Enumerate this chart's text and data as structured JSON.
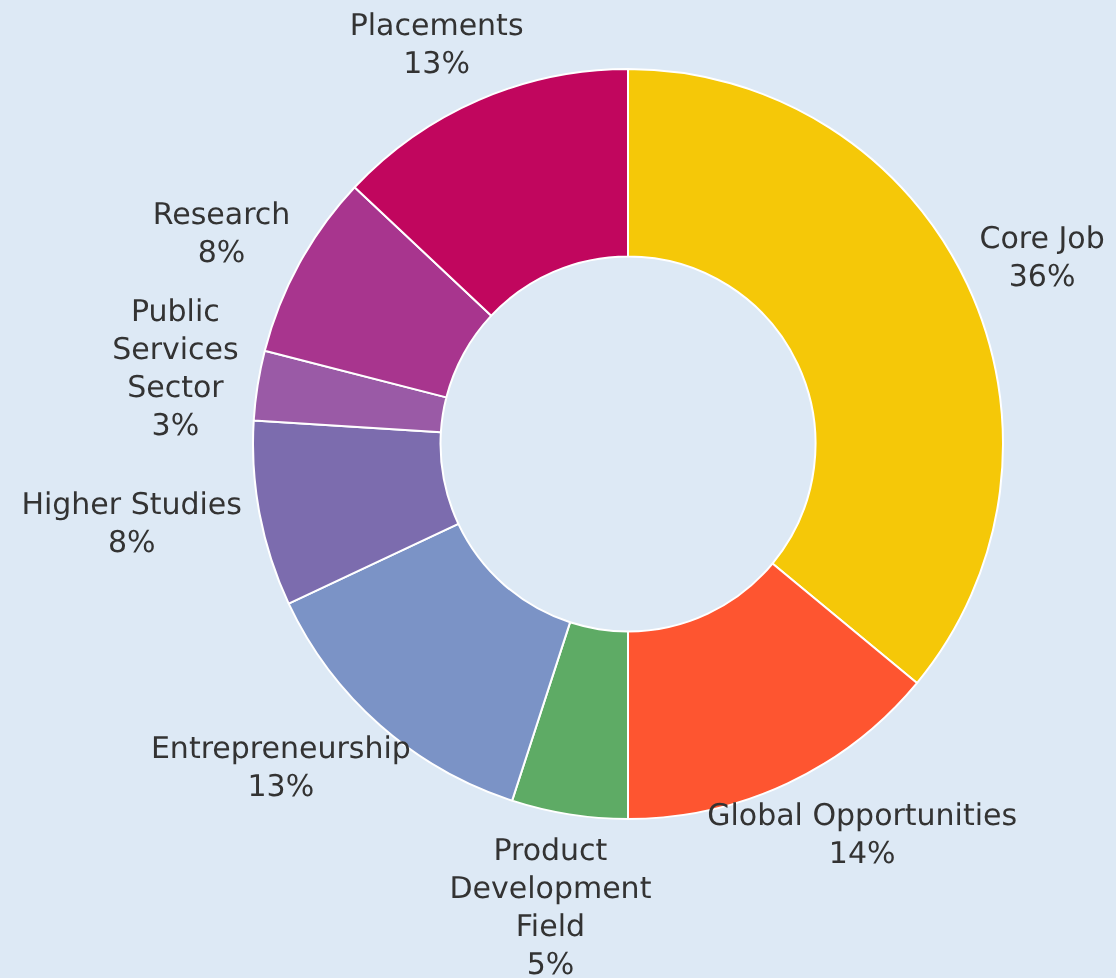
{
  "chart_data": {
    "type": "donut",
    "categories": [
      "Core Job",
      "Global Opportunities",
      "Product Development Field",
      "Entrepreneurship",
      "Higher Studies",
      "Public Services Sector",
      "Research",
      "Placements"
    ],
    "values": [
      36,
      14,
      5,
      13,
      8,
      3,
      8,
      13
    ],
    "value_labels": [
      "36%",
      "14%",
      "5%",
      "13%",
      "8%",
      "3%",
      "8%",
      "13%"
    ],
    "colors": [
      "#f5c808",
      "#fe5530",
      "#5eab65",
      "#7b93c6",
      "#7c6cae",
      "#9a5aa6",
      "#a8358e",
      "#c1065e"
    ],
    "legend": false
  }
}
